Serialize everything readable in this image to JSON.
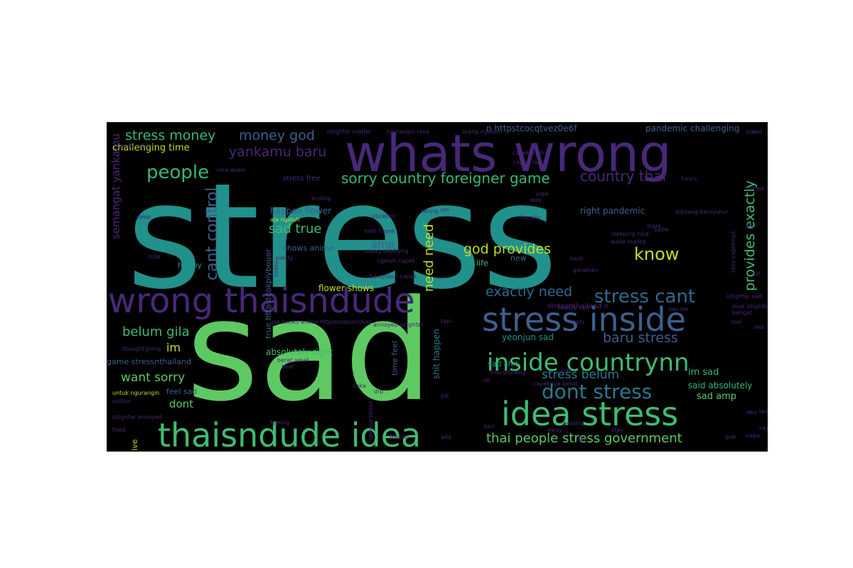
{
  "chart_data": {
    "type": "wordcloud",
    "colors": {
      "purple": "#482878",
      "blue": "#3e5f8d",
      "teal": "#21918c",
      "green": "#3fbc73",
      "light_green": "#7ad151",
      "yellow": "#c2df23",
      "dark_teal": "#2a788e",
      "dark_purple": "#440154"
    },
    "words": [
      {
        "text": "stress",
        "weight": 1.0,
        "color": "#21918c",
        "vertical": false
      },
      {
        "text": "sad",
        "weight": 0.92,
        "color": "#5ec962",
        "vertical": false
      },
      {
        "text": "whats wrong",
        "weight": 0.42,
        "color": "#482878",
        "vertical": false
      },
      {
        "text": "wrong thaisndude",
        "weight": 0.27,
        "color": "#482878",
        "vertical": false
      },
      {
        "text": "stress inside",
        "weight": 0.26,
        "color": "#3e5f8d",
        "vertical": false
      },
      {
        "text": "idea stress",
        "weight": 0.26,
        "color": "#3fbc73",
        "vertical": false
      },
      {
        "text": "thaisndude idea",
        "weight": 0.25,
        "color": "#3fbc73",
        "vertical": false
      },
      {
        "text": "inside countrynn",
        "weight": 0.21,
        "color": "#3fbc73",
        "vertical": false
      },
      {
        "text": "dont stress",
        "weight": 0.15,
        "color": "#2a788e",
        "vertical": false
      },
      {
        "text": "stress cant",
        "weight": 0.14,
        "color": "#31688e",
        "vertical": false
      },
      {
        "text": "people",
        "weight": 0.13,
        "color": "#35b779",
        "vertical": false
      },
      {
        "text": "know",
        "weight": 0.13,
        "color": "#c2df23",
        "vertical": false
      },
      {
        "text": "cant control",
        "weight": 0.13,
        "color": "#3e5f8d",
        "vertical": true
      },
      {
        "text": "sorry country foreigner game",
        "weight": 0.11,
        "color": "#35b779",
        "vertical": false
      },
      {
        "text": "country thai",
        "weight": 0.11,
        "color": "#482878",
        "vertical": false
      },
      {
        "text": "thai people stress government",
        "weight": 0.11,
        "color": "#5ec962",
        "vertical": false
      },
      {
        "text": "stress money",
        "weight": 0.1,
        "color": "#35b779",
        "vertical": false
      },
      {
        "text": "money god",
        "weight": 0.1,
        "color": "#3e5f8d",
        "vertical": false
      },
      {
        "text": "yankamu baru",
        "weight": 0.1,
        "color": "#482878",
        "vertical": false
      },
      {
        "text": "god provides",
        "weight": 0.1,
        "color": "#c2df23",
        "vertical": false
      },
      {
        "text": "baru stress",
        "weight": 0.1,
        "color": "#3e5f8d",
        "vertical": false
      },
      {
        "text": "exactly need",
        "weight": 0.1,
        "color": "#31688e",
        "vertical": false
      },
      {
        "text": "provides exactly",
        "weight": 0.1,
        "color": "#3fbc73",
        "vertical": true
      },
      {
        "text": "sad true",
        "weight": 0.09,
        "color": "#3fbc73",
        "vertical": false
      },
      {
        "text": "need need",
        "weight": 0.09,
        "color": "#c2df23",
        "vertical": true
      },
      {
        "text": "belum gila",
        "weight": 0.09,
        "color": "#3fbc73",
        "vertical": false
      },
      {
        "text": "want sorry",
        "weight": 0.09,
        "color": "#5ec962",
        "vertical": false
      },
      {
        "text": "stress belum",
        "weight": 0.09,
        "color": "#2a788e",
        "vertical": false
      },
      {
        "text": "semangat yankamu",
        "weight": 0.09,
        "color": "#482878",
        "vertical": true
      },
      {
        "text": "amp",
        "weight": 0.08,
        "color": "#3e5f8d",
        "vertical": false
      },
      {
        "text": "im",
        "weight": 0.08,
        "color": "#c2df23",
        "vertical": false
      },
      {
        "text": "dont",
        "weight": 0.08,
        "color": "#5ec962",
        "vertical": false
      },
      {
        "text": "challenging time",
        "weight": 0.06,
        "color": "#c2df23",
        "vertical": false
      },
      {
        "text": "right pandemic",
        "weight": 0.06,
        "color": "#3e5f8d",
        "vertical": false
      },
      {
        "text": "happen flower",
        "weight": 0.06,
        "color": "#3e5f8d",
        "vertical": false
      },
      {
        "text": "flower shows",
        "weight": 0.05,
        "color": "#c2df23",
        "vertical": false
      },
      {
        "text": "absolutely right",
        "weight": 0.05,
        "color": "#3fbc73",
        "vertical": false
      },
      {
        "text": "feel sad",
        "weight": 0.05,
        "color": "#3e5f8d",
        "vertical": false
      },
      {
        "text": "game stressnthailand",
        "weight": 0.05,
        "color": "#3e5f8d",
        "vertical": false
      },
      {
        "text": "yeonjun sad",
        "weight": 0.05,
        "color": "#21918c",
        "vertical": false
      },
      {
        "text": "sad shit",
        "weight": 0.05,
        "color": "#21918c",
        "vertical": false
      },
      {
        "text": "im sad",
        "weight": 0.05,
        "color": "#35b779",
        "vertical": false
      },
      {
        "text": "said absolutely",
        "weight": 0.05,
        "color": "#35b779",
        "vertical": false
      },
      {
        "text": "sad amp",
        "weight": 0.05,
        "color": "#5ec962",
        "vertical": false
      },
      {
        "text": "n httpstcocqtvez0e6f",
        "weight": 0.05,
        "color": "#3e5f8d",
        "vertical": false
      },
      {
        "text": "pandemic challenging",
        "weight": 0.05,
        "color": "#3e5f8d",
        "vertical": false
      },
      {
        "text": "happy",
        "weight": 0.05,
        "color": "#21918c",
        "vertical": false
      },
      {
        "text": "life",
        "weight": 0.05,
        "color": "#3fbc73",
        "vertical": false
      },
      {
        "text": "shows anime",
        "weight": 0.04,
        "color": "#3e5f8d",
        "vertical": false
      },
      {
        "text": "new",
        "weight": 0.04,
        "color": "#3e5f8d",
        "vertical": false
      },
      {
        "text": "stress free",
        "weight": 0.04,
        "color": "#482878",
        "vertical": false
      },
      {
        "text": "live",
        "weight": 0.04,
        "color": "#c2df23",
        "vertical": true
      },
      {
        "text": "time feel",
        "weight": 0.04,
        "color": "#3e5f8d",
        "vertical": true
      },
      {
        "text": "shit happen",
        "weight": 0.04,
        "color": "#2a788e",
        "vertical": true
      },
      {
        "text": "true httpstcokpiybouor",
        "weight": 0.04,
        "color": "#3e5f8d",
        "vertical": true
      },
      {
        "text": "stressnthailand n",
        "weight": 0.03,
        "color": "#482878",
        "vertical": false
      },
      {
        "text": "bob dibilang",
        "weight": 0.03,
        "color": "#482878",
        "vertical": false
      },
      {
        "text": "capeknya berat",
        "weight": 0.03,
        "color": "#482878",
        "vertical": false
      },
      {
        "text": "realize sad",
        "weight": 0.03,
        "color": "#482878",
        "vertical": false
      },
      {
        "text": "annoyed istighfar",
        "weight": 0.03,
        "color": "#482878",
        "vertical": false
      },
      {
        "text": "istighfar matter",
        "weight": 0.03,
        "color": "#482878",
        "vertical": false
      },
      {
        "text": "ngurangin rasa",
        "weight": 0.03,
        "color": "#482878",
        "vertical": false
      },
      {
        "text": "orang ngeluh",
        "weight": 0.03,
        "color": "#482878",
        "vertical": false
      },
      {
        "text": "ngeluh untuk",
        "weight": 0.03,
        "color": "#482878",
        "vertical": false
      },
      {
        "text": "capek mah",
        "weight": 0.03,
        "color": "#482878",
        "vertical": false
      },
      {
        "text": "capek lah",
        "weight": 0.03,
        "color": "#482878",
        "vertical": false
      },
      {
        "text": "nice wake",
        "weight": 0.03,
        "color": "#482878",
        "vertical": false
      },
      {
        "text": "ending",
        "weight": 0.03,
        "color": "#482878",
        "vertical": false
      },
      {
        "text": "situation",
        "weight": 0.03,
        "color": "#482878",
        "vertical": false
      },
      {
        "text": "aja ngeluh",
        "weight": 0.03,
        "color": "#c2df23",
        "vertical": false
      },
      {
        "text": "mah capek",
        "weight": 0.03,
        "color": "#482878",
        "vertical": false
      },
      {
        "text": "sayag sabihyng",
        "weight": 0.03,
        "color": "#482878",
        "vertical": false
      },
      {
        "text": "ngeluh capek",
        "weight": 0.03,
        "color": "#482878",
        "vertical": false
      },
      {
        "text": "bersyukur capek",
        "weight": 0.03,
        "color": "#482878",
        "vertical": false
      },
      {
        "text": "sleeping nice",
        "weight": 0.03,
        "color": "#482878",
        "vertical": false
      },
      {
        "text": "wake realize",
        "weight": 0.03,
        "color": "#482878",
        "vertical": false
      },
      {
        "text": "dibilang bersyukur",
        "weight": 0.03,
        "color": "#482878",
        "vertical": false
      },
      {
        "text": "hours",
        "weight": 0.03,
        "color": "#482878",
        "vertical": false
      },
      {
        "text": "hasil",
        "weight": 0.03,
        "color": "#482878",
        "vertical": false
      },
      {
        "text": "ganahan",
        "weight": 0.03,
        "color": "#482878",
        "vertical": false
      },
      {
        "text": "pretty",
        "weight": 0.03,
        "color": "#482878",
        "vertical": false
      },
      {
        "text": "today",
        "weight": 0.03,
        "color": "#482878",
        "vertical": true
      },
      {
        "text": "use books anime httpstcoduslridvro",
        "weight": 0.03,
        "color": "#482878",
        "vertical": false
      },
      {
        "text": "literally",
        "weight": 0.03,
        "color": "#482878",
        "vertical": false
      },
      {
        "text": "thats",
        "weight": 0.03,
        "color": "#482878",
        "vertical": false
      },
      {
        "text": "tapi",
        "weight": 0.03,
        "color": "#482878",
        "vertical": false
      },
      {
        "text": "berat amat",
        "weight": 0.03,
        "color": "#482878",
        "vertical": false
      },
      {
        "text": "istighfar sad",
        "weight": 0.03,
        "color": "#482878",
        "vertical": false
      },
      {
        "text": "muk istighfar",
        "weight": 0.03,
        "color": "#482878",
        "vertical": false
      },
      {
        "text": "release stress",
        "weight": 0.03,
        "color": "#482878",
        "vertical": true
      },
      {
        "text": "bear",
        "weight": 0.03,
        "color": "#482878",
        "vertical": false
      },
      {
        "text": "suka",
        "weight": 0.03,
        "color": "#482878",
        "vertical": false
      },
      {
        "text": "drp",
        "weight": 0.03,
        "color": "#482878",
        "vertical": false
      },
      {
        "text": "thought",
        "weight": 0.03,
        "color": "#482878",
        "vertical": false
      },
      {
        "text": "going",
        "weight": 0.03,
        "color": "#482878",
        "vertical": false
      },
      {
        "text": "untuk ngurangin",
        "weight": 0.03,
        "color": "#c2df23",
        "vertical": false
      },
      {
        "text": "million",
        "weight": 0.03,
        "color": "#482878",
        "vertical": false
      },
      {
        "text": "istighfar annoyed",
        "weight": 0.03,
        "color": "#482878",
        "vertical": false
      },
      {
        "text": "feeling",
        "weight": 0.03,
        "color": "#482878",
        "vertical": false
      },
      {
        "text": "tired",
        "weight": 0.03,
        "color": "#482878",
        "vertical": false
      },
      {
        "text": "feeling",
        "weight": 0.03,
        "color": "#482878",
        "vertical": false
      },
      {
        "text": "posting",
        "weight": 0.03,
        "color": "#482878",
        "vertical": false
      },
      {
        "text": "ever",
        "weight": 0.03,
        "color": "#482878",
        "vertical": false
      },
      {
        "text": "stay",
        "weight": 0.03,
        "color": "#482878",
        "vertical": false
      },
      {
        "text": "away",
        "weight": 0.03,
        "color": "#482878",
        "vertical": false
      },
      {
        "text": "way",
        "weight": 0.03,
        "color": "#482878",
        "vertical": false
      },
      {
        "text": "juga",
        "weight": 0.03,
        "color": "#482878",
        "vertical": false
      },
      {
        "text": "talk",
        "weight": 0.03,
        "color": "#482878",
        "vertical": false
      },
      {
        "text": "deep",
        "weight": 0.03,
        "color": "#482878",
        "vertical": false
      },
      {
        "text": "lama",
        "weight": 0.03,
        "color": "#482878",
        "vertical": false
      },
      {
        "text": "saya",
        "weight": 0.03,
        "color": "#482878",
        "vertical": false
      },
      {
        "text": "siapa",
        "weight": 0.03,
        "color": "#482878",
        "vertical": false
      },
      {
        "text": "sering",
        "weight": 0.03,
        "color": "#482878",
        "vertical": false
      },
      {
        "text": "turned",
        "weight": 0.03,
        "color": "#482878",
        "vertical": false
      },
      {
        "text": "stars",
        "weight": 0.03,
        "color": "#482878",
        "vertical": false
      },
      {
        "text": "bangat",
        "weight": 0.03,
        "color": "#482878",
        "vertical": false
      },
      {
        "text": "pas",
        "weight": 0.03,
        "color": "#482878",
        "vertical": false
      },
      {
        "text": "day",
        "weight": 0.03,
        "color": "#482878",
        "vertical": false
      },
      {
        "text": "die",
        "weight": 0.03,
        "color": "#482878",
        "vertical": false
      },
      {
        "text": "aku",
        "weight": 0.03,
        "color": "#482878",
        "vertical": false
      },
      {
        "text": "cute",
        "weight": 0.03,
        "color": "#482878",
        "vertical": false
      },
      {
        "text": "sadie",
        "weight": 0.03,
        "color": "#482878",
        "vertical": false
      },
      {
        "text": "dari",
        "weight": 0.03,
        "color": "#482878",
        "vertical": false
      },
      {
        "text": "gue",
        "weight": 0.03,
        "color": "#482878",
        "vertical": false
      },
      {
        "text": "rasa capeknya",
        "weight": 0.03,
        "color": "#482878",
        "vertical": true
      },
      {
        "text": "real",
        "weight": 0.03,
        "color": "#482878",
        "vertical": false
      },
      {
        "text": "sad",
        "weight": 0.03,
        "color": "#482878",
        "vertical": false
      },
      {
        "text": "sad",
        "weight": 0.03,
        "color": "#482878",
        "vertical": false
      },
      {
        "text": "pls",
        "weight": 0.03,
        "color": "#482878",
        "vertical": false
      },
      {
        "text": "ada",
        "weight": 0.03,
        "color": "#482878",
        "vertical": false
      },
      {
        "text": "pm",
        "weight": 0.03,
        "color": "#482878",
        "vertical": false
      },
      {
        "text": "sm",
        "weight": 0.03,
        "color": "#482878",
        "vertical": false
      },
      {
        "text": "lol",
        "weight": 0.03,
        "color": "#482878",
        "vertical": false
      },
      {
        "text": "ok",
        "weight": 0.03,
        "color": "#482878",
        "vertical": false
      }
    ]
  }
}
